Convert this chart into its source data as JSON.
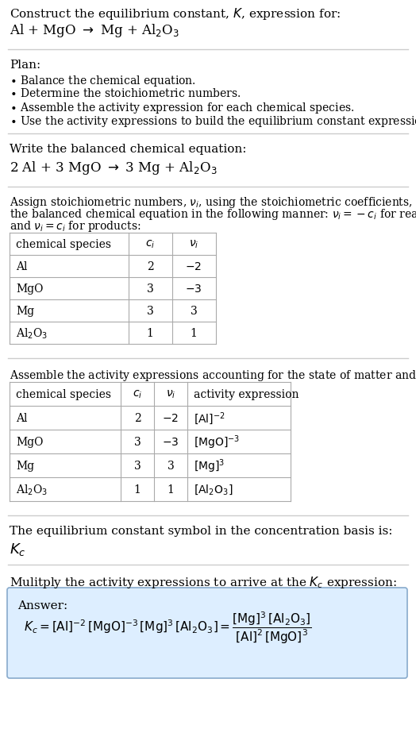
{
  "bg_color": "#ffffff",
  "text_color": "#000000",
  "line_color": "#cccccc",
  "table_line_color": "#aaaaaa",
  "answer_bg": "#ddeeff",
  "answer_border": "#88aacc",
  "font_size": 11,
  "small_font": 10,
  "eq_font": 12
}
